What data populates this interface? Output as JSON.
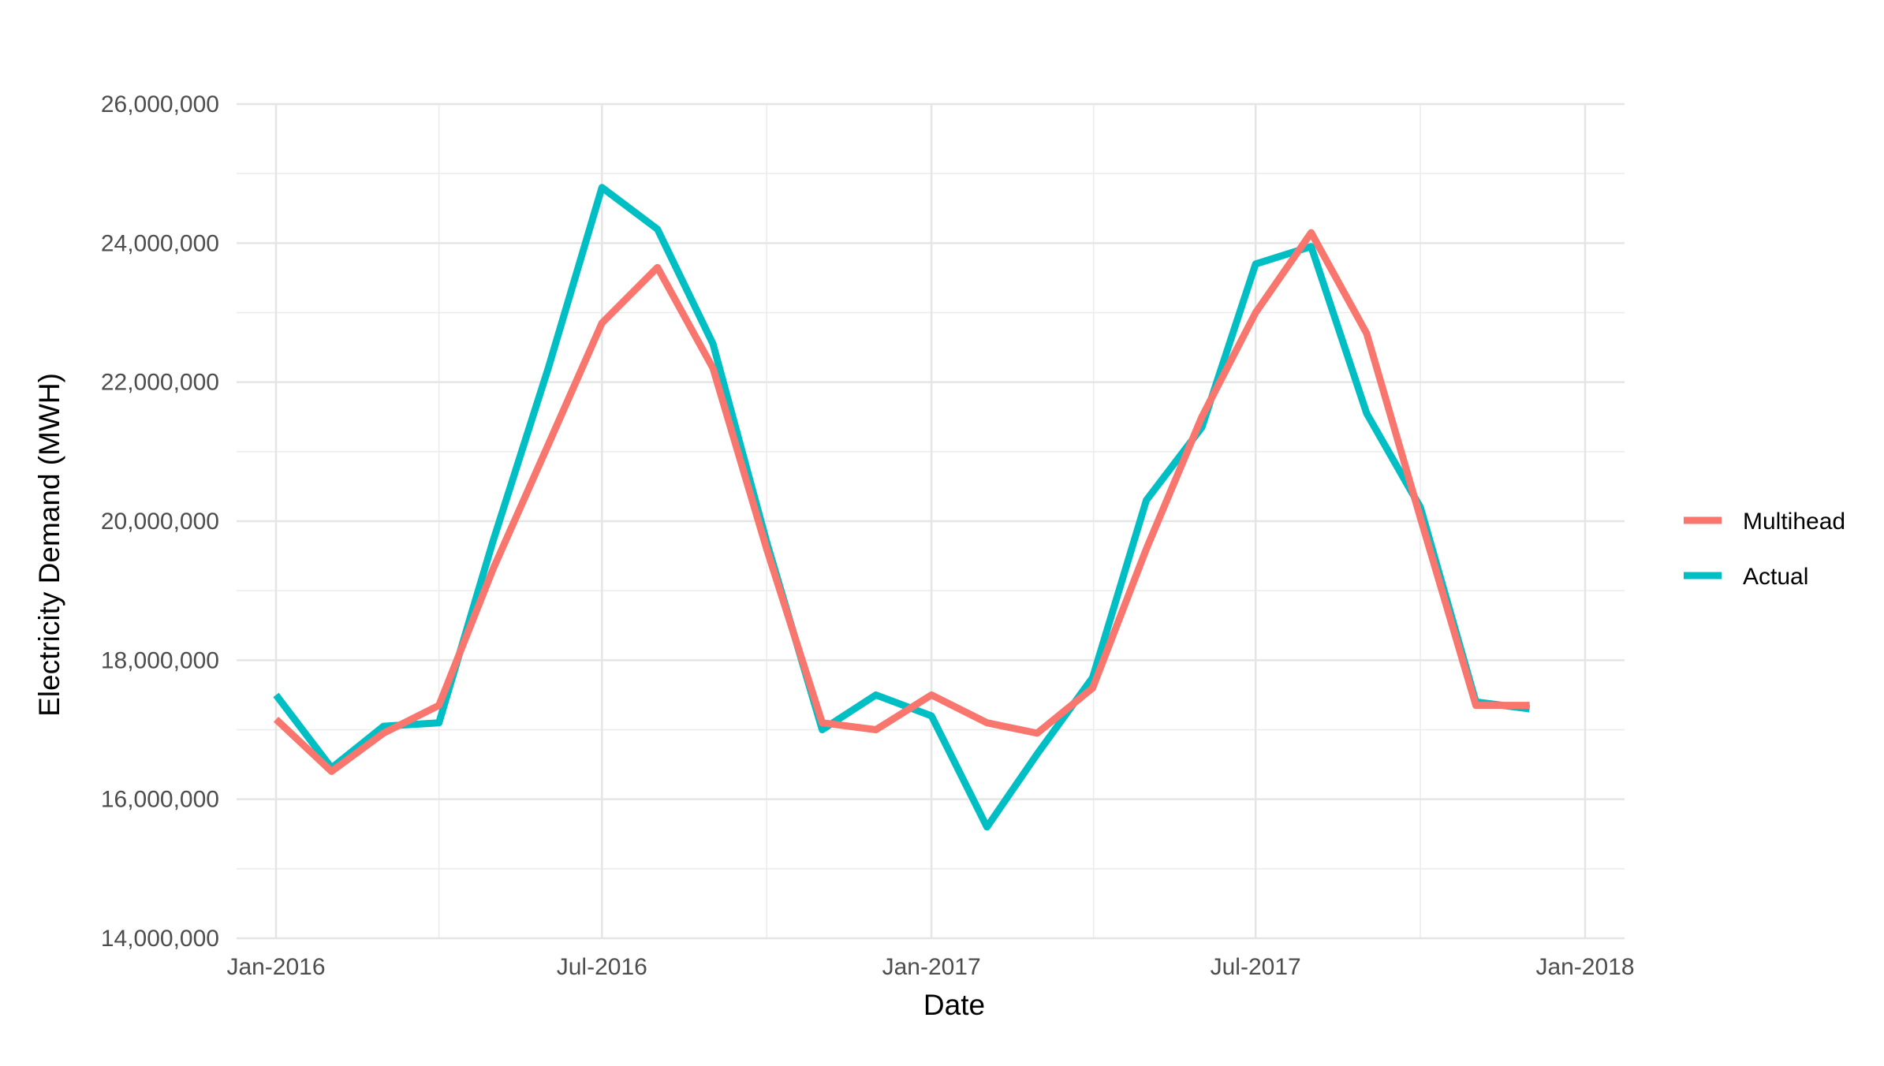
{
  "chart_data": {
    "type": "line",
    "title": "",
    "xlabel": "Date",
    "ylabel": "Electricity Demand (MWH)",
    "xlim": [
      "2016-01-01",
      "2018-01-01"
    ],
    "ylim": [
      14000000,
      26000000
    ],
    "grid": true,
    "legend_position": "right",
    "x_ticks": [
      {
        "date": "2016-01-01",
        "label": "Jan-2016"
      },
      {
        "date": "2016-07-01",
        "label": "Jul-2016"
      },
      {
        "date": "2017-01-01",
        "label": "Jan-2017"
      },
      {
        "date": "2017-07-01",
        "label": "Jul-2017"
      },
      {
        "date": "2018-01-01",
        "label": "Jan-2018"
      }
    ],
    "y_ticks": [
      {
        "value": 14000000,
        "label": "14,000,000"
      },
      {
        "value": 16000000,
        "label": "16,000,000"
      },
      {
        "value": 18000000,
        "label": "18,000,000"
      },
      {
        "value": 20000000,
        "label": "20,000,000"
      },
      {
        "value": 22000000,
        "label": "22,000,000"
      },
      {
        "value": 24000000,
        "label": "24,000,000"
      },
      {
        "value": 26000000,
        "label": "26,000,000"
      }
    ],
    "x": [
      "2016-01-01",
      "2016-02-01",
      "2016-03-01",
      "2016-04-01",
      "2016-05-01",
      "2016-06-01",
      "2016-07-01",
      "2016-08-01",
      "2016-09-01",
      "2016-10-01",
      "2016-11-01",
      "2016-12-01",
      "2017-01-01",
      "2017-02-01",
      "2017-03-01",
      "2017-04-01",
      "2017-05-01",
      "2017-06-01",
      "2017-07-01",
      "2017-08-01",
      "2017-09-01",
      "2017-10-01",
      "2017-11-01",
      "2017-12-01"
    ],
    "series": [
      {
        "name": "Multihead",
        "color": "#F8766D",
        "values": [
          17150000,
          16400000,
          16950000,
          17350000,
          19300000,
          21100000,
          22850000,
          23650000,
          22200000,
          19600000,
          17100000,
          17000000,
          17500000,
          17100000,
          16950000,
          17600000,
          19600000,
          21500000,
          23000000,
          24150000,
          22700000,
          20050000,
          17350000,
          17350000
        ]
      },
      {
        "name": "Actual",
        "color": "#00BFC4",
        "values": [
          17500000,
          16450000,
          17050000,
          17100000,
          19700000,
          22200000,
          24800000,
          24200000,
          22550000,
          19700000,
          17000000,
          17500000,
          17200000,
          15600000,
          16650000,
          17750000,
          20300000,
          21350000,
          23700000,
          23950000,
          21550000,
          20200000,
          17400000,
          17300000
        ]
      }
    ]
  }
}
